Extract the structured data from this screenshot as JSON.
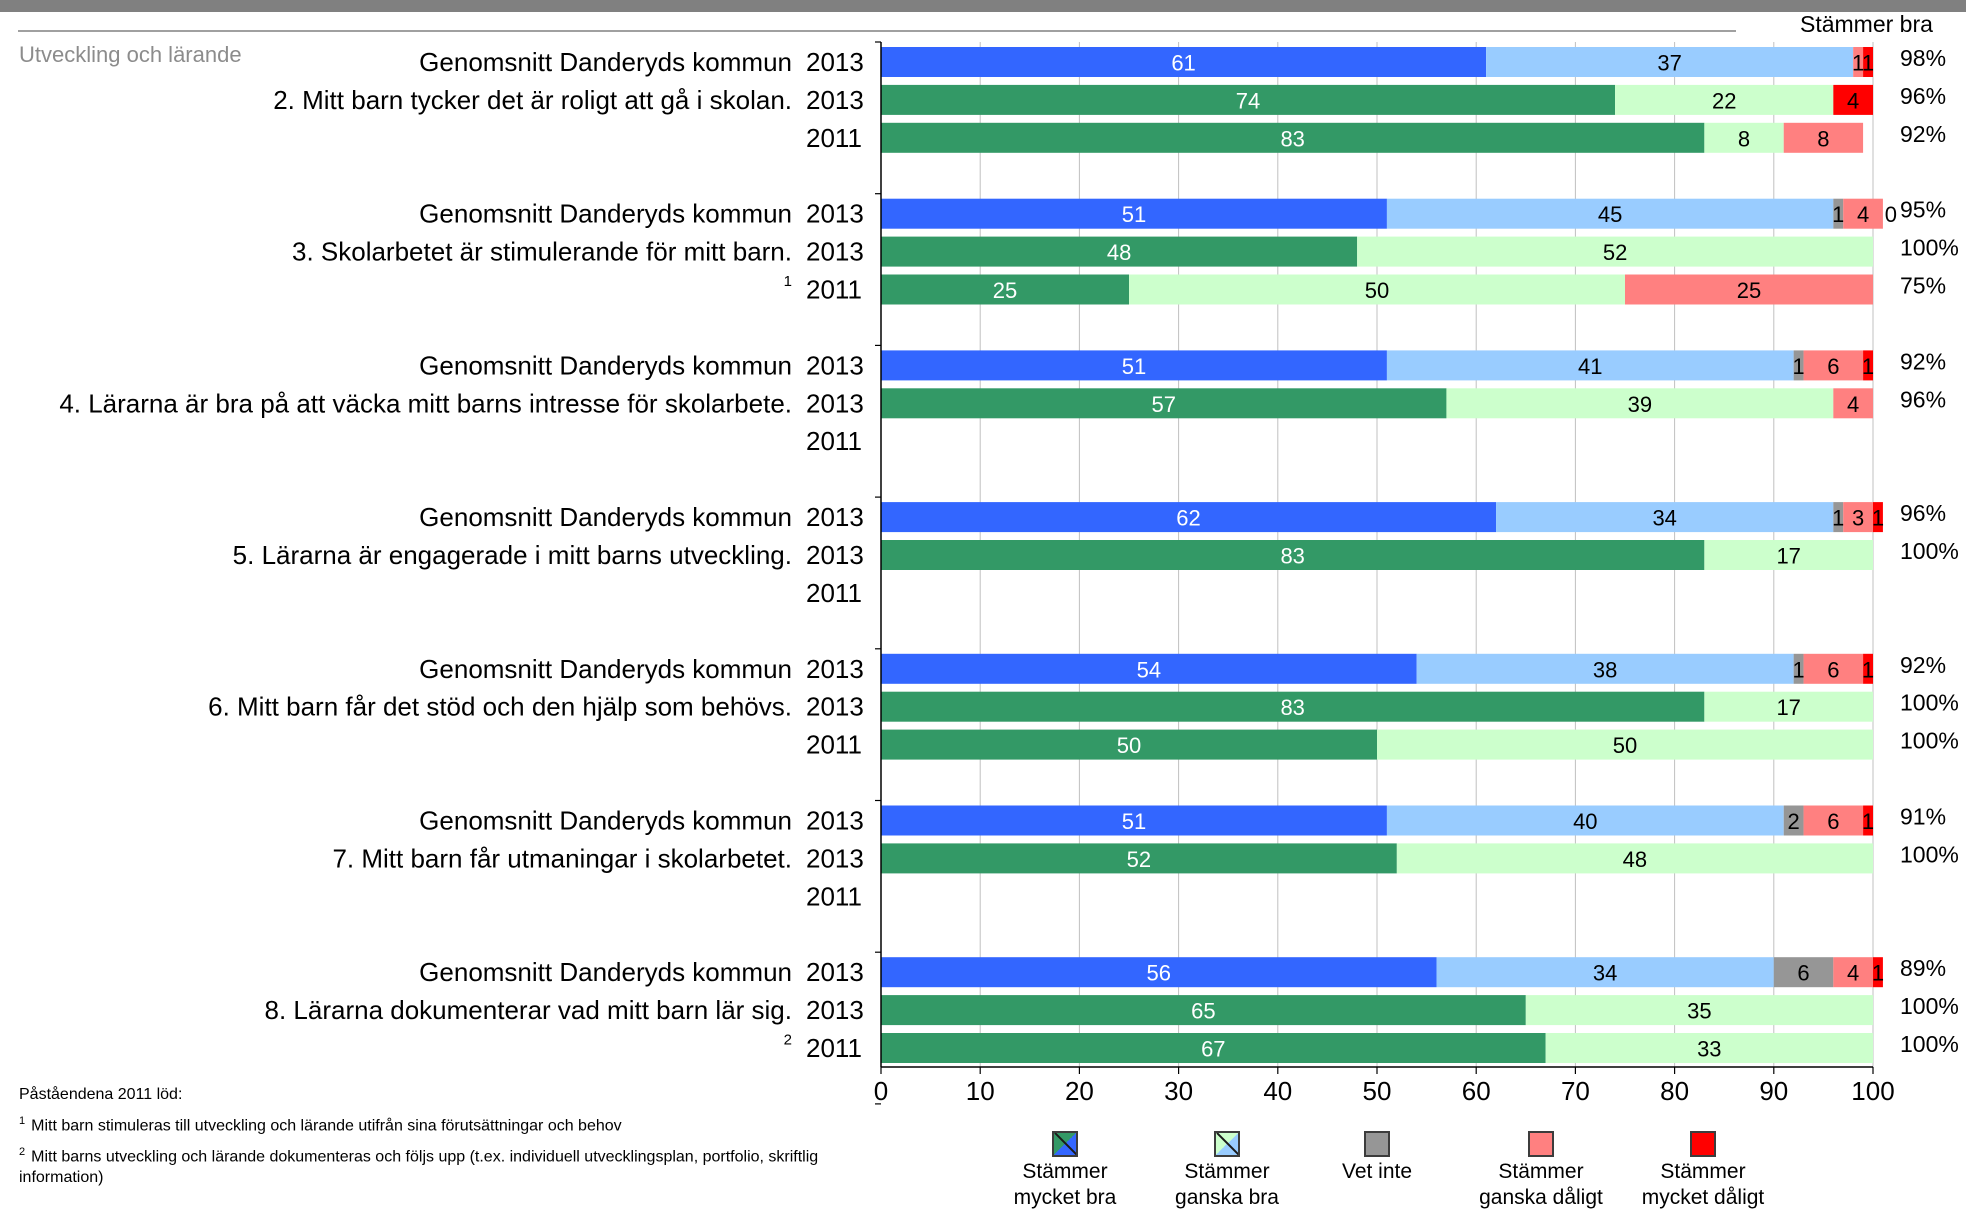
{
  "section_title": "Utveckling och lärande",
  "header_right": "Stämmer bra",
  "footnotes": {
    "intro": "Påståendena 2011 löd:",
    "items": [
      {
        "mark": "1",
        "text": "Mitt barn stimuleras till utveckling och lärande utifrån sina förutsättningar och behov"
      },
      {
        "mark": "2",
        "text": "Mitt barns utveckling och lärande dokumenteras och följs upp (t.ex. individuell utvecklingsplan, portfolio, skriftlig information)"
      }
    ]
  },
  "legend": [
    {
      "label": "Stämmer mycket bra",
      "color": "#339966",
      "color2": "#3366ff",
      "icon": "diagonal-split-swatch"
    },
    {
      "label": "Stämmer ganska bra",
      "color": "#ccffcc",
      "color2": "#99ccff",
      "icon": "diagonal-split-swatch"
    },
    {
      "label": "Vet inte",
      "color": "#969696",
      "icon": "swatch"
    },
    {
      "label": "Stämmer ganska dåligt",
      "color": "#ff8080",
      "icon": "swatch"
    },
    {
      "label": "Stämmer mycket dåligt",
      "color": "#ff0000",
      "icon": "swatch"
    }
  ],
  "chart_data": {
    "type": "bar",
    "orientation": "horizontal",
    "stacked": true,
    "xlim": [
      0,
      100
    ],
    "xticks": [
      0,
      10,
      20,
      30,
      40,
      50,
      60,
      70,
      80,
      90,
      100
    ],
    "grid": true,
    "legend_position": "bottom",
    "series_names": [
      "Stämmer mycket bra",
      "Stämmer ganska bra",
      "Vet inte",
      "Stämmer ganska dåligt",
      "Stämmer mycket dåligt"
    ],
    "colors": {
      "avg": [
        "#3366ff",
        "#99ccff",
        "#969696",
        "#ff8080",
        "#ff0000"
      ],
      "school": [
        "#339966",
        "#ccffcc",
        "#969696",
        "#ff8080",
        "#ff0000"
      ]
    },
    "groups": [
      {
        "question": "",
        "rows": [
          {
            "label": "Genomsnitt Danderyds kommun",
            "year": "2013",
            "kind": "avg",
            "values": [
              61,
              37,
              0,
              1,
              1
            ],
            "labels": [
              "61",
              "37",
              "",
              "1",
              "1"
            ],
            "total": "98%"
          },
          {
            "label": "2.  Mitt barn tycker det är roligt att gå i skolan.",
            "year": "2013",
            "kind": "school",
            "values": [
              74,
              22,
              0,
              0,
              4
            ],
            "labels": [
              "74",
              "22",
              "",
              "",
              "4"
            ],
            "total": "96%"
          },
          {
            "label": "",
            "year": "2011",
            "kind": "school",
            "values": [
              83,
              8,
              0,
              8,
              0
            ],
            "labels": [
              "83",
              "8",
              "",
              "8",
              ""
            ],
            "total": "92%"
          }
        ]
      },
      {
        "question": "",
        "rows": [
          {
            "label": "Genomsnitt Danderyds kommun",
            "year": "2013",
            "kind": "avg",
            "values": [
              51,
              45,
              1,
              4,
              0
            ],
            "labels": [
              "51",
              "45",
              "1",
              "4",
              "0"
            ],
            "total": "95%"
          },
          {
            "label": "3.  Skolarbetet är stimulerande för mitt barn.",
            "year": "2013",
            "kind": "school",
            "values": [
              48,
              52,
              0,
              0,
              0
            ],
            "labels": [
              "48",
              "52",
              "",
              "",
              ""
            ],
            "total": "100%"
          },
          {
            "label": "1",
            "sup": true,
            "year": "2011",
            "kind": "school",
            "values": [
              25,
              50,
              0,
              25,
              0
            ],
            "labels": [
              "25",
              "50",
              "",
              "25",
              ""
            ],
            "total": "75%"
          }
        ]
      },
      {
        "question": "",
        "rows": [
          {
            "label": "Genomsnitt Danderyds kommun",
            "year": "2013",
            "kind": "avg",
            "values": [
              51,
              41,
              1,
              6,
              1
            ],
            "labels": [
              "51",
              "41",
              "1",
              "6",
              "1"
            ],
            "total": "92%"
          },
          {
            "label": "4.  Lärarna är bra på att väcka mitt barns intresse för skolarbete.",
            "year": "2013",
            "kind": "school",
            "values": [
              57,
              39,
              0,
              4,
              0
            ],
            "labels": [
              "57",
              "39",
              "",
              "4",
              ""
            ],
            "total": "96%"
          },
          {
            "label": "",
            "year": "2011",
            "kind": "school",
            "values": [
              0,
              0,
              0,
              0,
              0
            ],
            "labels": [
              "",
              "",
              "",
              "",
              ""
            ],
            "total": ""
          }
        ]
      },
      {
        "question": "",
        "rows": [
          {
            "label": "Genomsnitt Danderyds kommun",
            "year": "2013",
            "kind": "avg",
            "values": [
              62,
              34,
              1,
              3,
              1
            ],
            "labels": [
              "62",
              "34",
              "1",
              "3",
              "1"
            ],
            "total": "96%"
          },
          {
            "label": "5.  Lärarna är engagerade i mitt barns utveckling.",
            "year": "2013",
            "kind": "school",
            "values": [
              83,
              17,
              0,
              0,
              0
            ],
            "labels": [
              "83",
              "17",
              "",
              "",
              ""
            ],
            "total": "100%"
          },
          {
            "label": "",
            "year": "2011",
            "kind": "school",
            "values": [
              0,
              0,
              0,
              0,
              0
            ],
            "labels": [
              "",
              "",
              "",
              "",
              ""
            ],
            "total": ""
          }
        ]
      },
      {
        "question": "",
        "rows": [
          {
            "label": "Genomsnitt Danderyds kommun",
            "year": "2013",
            "kind": "avg",
            "values": [
              54,
              38,
              1,
              6,
              1
            ],
            "labels": [
              "54",
              "38",
              "1",
              "6",
              "1"
            ],
            "total": "92%"
          },
          {
            "label": "6.  Mitt barn får det stöd och den hjälp som behövs.",
            "year": "2013",
            "kind": "school",
            "values": [
              83,
              17,
              0,
              0,
              0
            ],
            "labels": [
              "83",
              "17",
              "",
              "",
              ""
            ],
            "total": "100%"
          },
          {
            "label": "",
            "year": "2011",
            "kind": "school",
            "values": [
              50,
              50,
              0,
              0,
              0
            ],
            "labels": [
              "50",
              "50",
              "",
              "",
              ""
            ],
            "total": "100%"
          }
        ]
      },
      {
        "question": "",
        "rows": [
          {
            "label": "Genomsnitt Danderyds kommun",
            "year": "2013",
            "kind": "avg",
            "values": [
              51,
              40,
              2,
              6,
              1
            ],
            "labels": [
              "51",
              "40",
              "2",
              "6",
              "1"
            ],
            "total": "91%"
          },
          {
            "label": "7.  Mitt barn får utmaningar i skolarbetet.",
            "year": "2013",
            "kind": "school",
            "values": [
              52,
              48,
              0,
              0,
              0
            ],
            "labels": [
              "52",
              "48",
              "",
              "",
              ""
            ],
            "total": "100%"
          },
          {
            "label": "",
            "year": "2011",
            "kind": "school",
            "values": [
              0,
              0,
              0,
              0,
              0
            ],
            "labels": [
              "",
              "",
              "",
              "",
              ""
            ],
            "total": ""
          }
        ]
      },
      {
        "question": "",
        "rows": [
          {
            "label": "Genomsnitt Danderyds kommun",
            "year": "2013",
            "kind": "avg",
            "values": [
              56,
              34,
              6,
              4,
              1
            ],
            "labels": [
              "56",
              "34",
              "6",
              "4",
              "1"
            ],
            "total": "89%"
          },
          {
            "label": "8.  Lärarna dokumenterar vad mitt barn lär sig.",
            "year": "2013",
            "kind": "school",
            "values": [
              65,
              35,
              0,
              0,
              0
            ],
            "labels": [
              "65",
              "35",
              "",
              "",
              ""
            ],
            "total": "100%"
          },
          {
            "label": "2",
            "sup": true,
            "year": "2011",
            "kind": "school",
            "values": [
              67,
              33,
              0,
              0,
              0
            ],
            "labels": [
              "67",
              "33",
              "",
              "",
              ""
            ],
            "total": "100%"
          }
        ]
      }
    ]
  }
}
